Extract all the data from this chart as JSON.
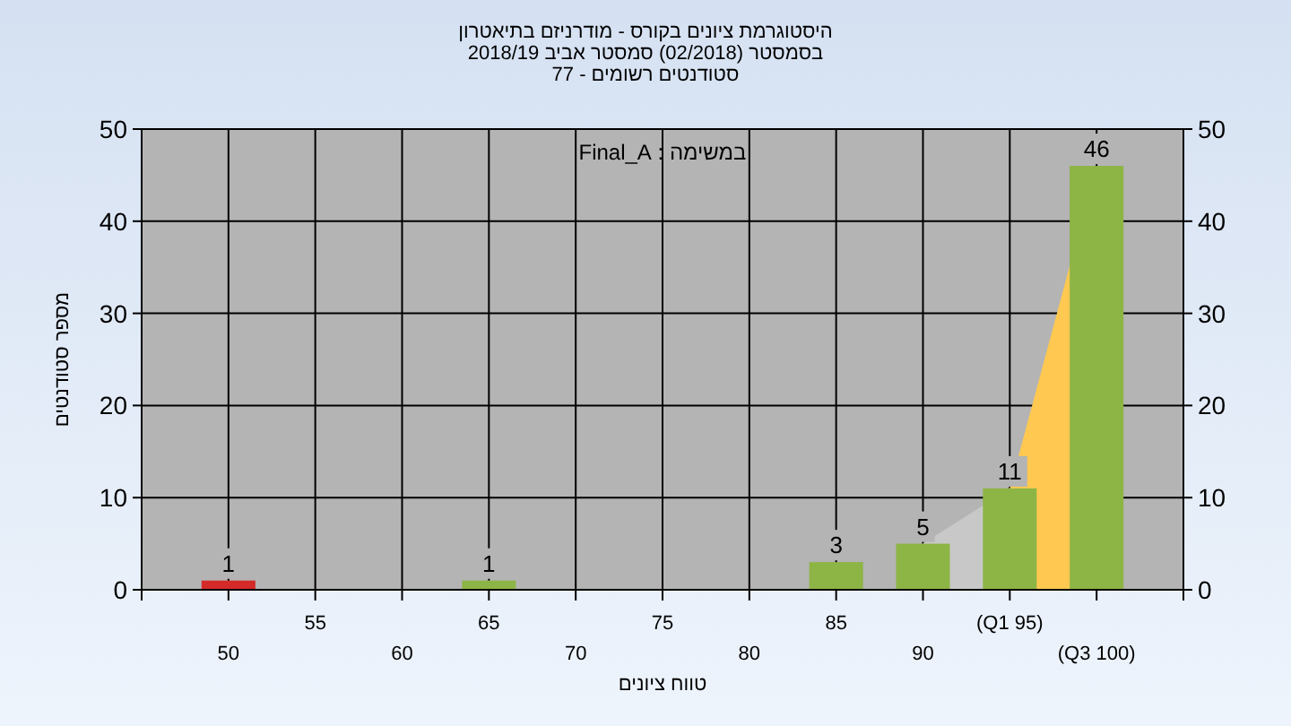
{
  "chart_data": {
    "type": "bar",
    "title": "היסטוגרמת ציונים בקורס - מודרניזם בתיאטרון",
    "subtitle": "בסמסטר  (02/2018)  סמסטר אביב 2018/19\nסטודנטים רשומים - 77",
    "xlabel": "טווח ציונים",
    "ylabel": "מספר סטודנטים",
    "annotations": [
      "במשימה : Final_A"
    ],
    "categories": [
      "50",
      "55",
      "60",
      "65",
      "70",
      "75",
      "80",
      "85",
      "90",
      "(Q1 95)",
      "(Q3 100)"
    ],
    "series": [
      {
        "type": "area",
        "color": "#c8c8c8",
        "values": [
          null,
          null,
          null,
          null,
          null,
          null,
          null,
          null,
          5,
          11,
          null
        ]
      },
      {
        "type": "area",
        "color": "#ffc850",
        "values": [
          null,
          null,
          null,
          null,
          null,
          null,
          null,
          null,
          null,
          11,
          46
        ]
      },
      {
        "type": "bar",
        "colors": [
          "#d42a2a",
          "#8db545",
          "#8db545",
          "#8db545",
          "#8db545",
          "#8db545",
          "#8db545",
          "#8db545",
          "#8db545",
          "#8db545",
          "#8db545"
        ],
        "values": [
          1,
          0,
          0,
          1,
          0,
          0,
          0,
          3,
          5,
          11,
          46
        ],
        "value_labels": [
          "1",
          null,
          null,
          "1",
          null,
          null,
          null,
          "3",
          "5",
          "11",
          "46"
        ]
      }
    ],
    "ylim": [
      0,
      50
    ],
    "yticks": [
      0,
      10,
      20,
      30,
      40,
      50
    ],
    "y2lim": [
      0,
      50
    ],
    "y2ticks": [
      0,
      10,
      20,
      30,
      40,
      50
    ],
    "grid": true
  }
}
